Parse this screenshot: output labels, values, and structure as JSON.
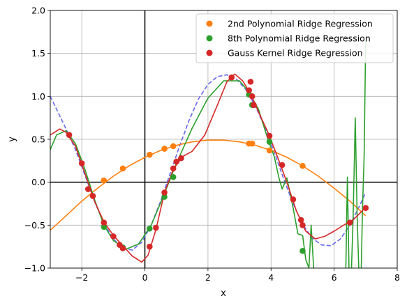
{
  "chart_data": {
    "type": "scatter",
    "title": "",
    "xlabel": "x",
    "ylabel": "y",
    "xlim": [
      -3,
      8
    ],
    "ylim": [
      -1,
      2
    ],
    "x_ticks": [
      -2,
      0,
      2,
      4,
      6,
      8
    ],
    "y_ticks": [
      -1.0,
      -0.5,
      0.0,
      0.5,
      1.0,
      1.5,
      2.0
    ],
    "x_tick_labels": [
      "−2",
      "0",
      "2",
      "4",
      "6",
      "8"
    ],
    "y_tick_labels": [
      "−1.0",
      "−0.5",
      "0.0",
      "0.5",
      "1.0",
      "1.5",
      "2.0"
    ],
    "grid": true,
    "legend_position": "top-right",
    "colors": {
      "orange": "#ff7f0e",
      "green": "#2ca02c",
      "red": "#d62728",
      "true_fn": "#6666ee",
      "axis_line": "#000000",
      "grid": "#b0b0b0"
    },
    "series": [
      {
        "name": "2nd Polynomial Ridge Regression",
        "color": "#ff7f0e",
        "points": [
          {
            "x": -1.3,
            "y": 0.02
          },
          {
            "x": -0.7,
            "y": 0.16
          },
          {
            "x": 0.15,
            "y": 0.32
          },
          {
            "x": 0.62,
            "y": 0.39
          },
          {
            "x": 0.9,
            "y": 0.42
          },
          {
            "x": 3.3,
            "y": 0.45
          },
          {
            "x": 3.4,
            "y": 0.45
          },
          {
            "x": 3.95,
            "y": 0.37
          },
          {
            "x": 5.0,
            "y": 0.19
          }
        ],
        "fit_line": [
          {
            "x": -3.0,
            "y": -0.56
          },
          {
            "x": -2.5,
            "y": -0.39
          },
          {
            "x": -2.0,
            "y": -0.22
          },
          {
            "x": -1.5,
            "y": -0.07
          },
          {
            "x": -1.0,
            "y": 0.07
          },
          {
            "x": -0.5,
            "y": 0.19
          },
          {
            "x": 0.0,
            "y": 0.29
          },
          {
            "x": 0.5,
            "y": 0.37
          },
          {
            "x": 1.0,
            "y": 0.43
          },
          {
            "x": 1.5,
            "y": 0.47
          },
          {
            "x": 2.0,
            "y": 0.49
          },
          {
            "x": 2.5,
            "y": 0.49
          },
          {
            "x": 3.0,
            "y": 0.47
          },
          {
            "x": 3.5,
            "y": 0.43
          },
          {
            "x": 4.0,
            "y": 0.37
          },
          {
            "x": 4.5,
            "y": 0.29
          },
          {
            "x": 5.0,
            "y": 0.19
          },
          {
            "x": 5.5,
            "y": 0.07
          },
          {
            "x": 6.0,
            "y": -0.07
          },
          {
            "x": 6.5,
            "y": -0.22
          },
          {
            "x": 7.0,
            "y": -0.39
          }
        ]
      },
      {
        "name": "8th Polynomial Ridge Regression",
        "color": "#2ca02c",
        "points": [
          {
            "x": -1.3,
            "y": -0.52
          },
          {
            "x": -0.7,
            "y": -0.76
          },
          {
            "x": 0.15,
            "y": -0.54
          },
          {
            "x": 0.62,
            "y": -0.17
          },
          {
            "x": 0.9,
            "y": 0.06
          },
          {
            "x": 3.3,
            "y": 1.02
          },
          {
            "x": 3.4,
            "y": 0.9
          },
          {
            "x": 3.95,
            "y": 0.47
          },
          {
            "x": 5.0,
            "y": -0.8
          }
        ],
        "fit_line": [
          {
            "x": -3.0,
            "y": 0.38
          },
          {
            "x": -2.8,
            "y": 0.55
          },
          {
            "x": -2.5,
            "y": 0.6
          },
          {
            "x": -2.2,
            "y": 0.45
          },
          {
            "x": -1.9,
            "y": 0.15
          },
          {
            "x": -1.6,
            "y": -0.2
          },
          {
            "x": -1.3,
            "y": -0.5
          },
          {
            "x": -1.0,
            "y": -0.68
          },
          {
            "x": -0.6,
            "y": -0.78
          },
          {
            "x": -0.2,
            "y": -0.72
          },
          {
            "x": 0.2,
            "y": -0.5
          },
          {
            "x": 0.6,
            "y": -0.15
          },
          {
            "x": 1.0,
            "y": 0.22
          },
          {
            "x": 1.5,
            "y": 0.63
          },
          {
            "x": 2.0,
            "y": 0.98
          },
          {
            "x": 2.5,
            "y": 1.18
          },
          {
            "x": 3.0,
            "y": 1.18
          },
          {
            "x": 3.3,
            "y": 1.05
          },
          {
            "x": 3.6,
            "y": 0.85
          },
          {
            "x": 3.9,
            "y": 0.5
          },
          {
            "x": 4.1,
            "y": 0.3
          },
          {
            "x": 4.25,
            "y": 0.05
          },
          {
            "x": 4.35,
            "y": -0.08
          },
          {
            "x": 4.5,
            "y": 0.05
          },
          {
            "x": 4.7,
            "y": -0.3
          },
          {
            "x": 4.85,
            "y": -0.6
          },
          {
            "x": 5.0,
            "y": -0.62
          },
          {
            "x": 5.1,
            "y": -0.9
          },
          {
            "x": 5.2,
            "y": -1.0
          },
          {
            "x": 5.27,
            "y": -0.5
          },
          {
            "x": 5.35,
            "y": -1.0
          }
        ],
        "fit_line_2": [
          {
            "x": 6.37,
            "y": -1.0
          },
          {
            "x": 6.42,
            "y": 0.06
          },
          {
            "x": 6.47,
            "y": -1.0
          }
        ],
        "fit_line_3": [
          {
            "x": 6.55,
            "y": -1.0
          },
          {
            "x": 6.6,
            "y": -0.45
          },
          {
            "x": 6.67,
            "y": 0.75
          },
          {
            "x": 6.73,
            "y": -0.4
          },
          {
            "x": 6.78,
            "y": -1.0
          }
        ],
        "fit_line_4": [
          {
            "x": 6.86,
            "y": -1.0
          },
          {
            "x": 6.9,
            "y": -0.3
          },
          {
            "x": 6.95,
            "y": 0.3
          },
          {
            "x": 7.0,
            "y": 1.65
          }
        ]
      },
      {
        "name": "Gauss Kernel Ridge Regression",
        "color": "#d62728",
        "points": [
          {
            "x": -2.4,
            "y": 0.55
          },
          {
            "x": -2.0,
            "y": 0.22
          },
          {
            "x": -1.8,
            "y": -0.08
          },
          {
            "x": -1.65,
            "y": -0.16
          },
          {
            "x": -1.3,
            "y": -0.47
          },
          {
            "x": -1.0,
            "y": -0.63
          },
          {
            "x": -0.8,
            "y": -0.73
          },
          {
            "x": -0.7,
            "y": -0.77
          },
          {
            "x": 0.15,
            "y": -0.75
          },
          {
            "x": 0.35,
            "y": -0.53
          },
          {
            "x": 0.62,
            "y": -0.12
          },
          {
            "x": 0.9,
            "y": 0.16
          },
          {
            "x": 1.0,
            "y": 0.24
          },
          {
            "x": 1.15,
            "y": 0.28
          },
          {
            "x": 2.75,
            "y": 1.22
          },
          {
            "x": 3.3,
            "y": 1.07
          },
          {
            "x": 3.35,
            "y": 1.17
          },
          {
            "x": 3.4,
            "y": 1.0
          },
          {
            "x": 3.45,
            "y": 0.9
          },
          {
            "x": 3.95,
            "y": 0.54
          },
          {
            "x": 4.35,
            "y": 0.2
          },
          {
            "x": 4.7,
            "y": -0.2
          },
          {
            "x": 4.95,
            "y": -0.44
          },
          {
            "x": 5.0,
            "y": -0.5
          },
          {
            "x": 6.5,
            "y": -0.47
          },
          {
            "x": 7.0,
            "y": -0.3
          }
        ],
        "fit_line": [
          {
            "x": -3.0,
            "y": 0.55
          },
          {
            "x": -2.7,
            "y": 0.62
          },
          {
            "x": -2.5,
            "y": 0.58
          },
          {
            "x": -2.2,
            "y": 0.42
          },
          {
            "x": -1.9,
            "y": 0.1
          },
          {
            "x": -1.6,
            "y": -0.22
          },
          {
            "x": -1.3,
            "y": -0.46
          },
          {
            "x": -1.0,
            "y": -0.62
          },
          {
            "x": -0.7,
            "y": -0.74
          },
          {
            "x": -0.4,
            "y": -0.86
          },
          {
            "x": -0.1,
            "y": -0.93
          },
          {
            "x": 0.1,
            "y": -0.85
          },
          {
            "x": 0.35,
            "y": -0.55
          },
          {
            "x": 0.62,
            "y": -0.12
          },
          {
            "x": 0.9,
            "y": 0.15
          },
          {
            "x": 1.2,
            "y": 0.3
          },
          {
            "x": 1.5,
            "y": 0.36
          },
          {
            "x": 1.9,
            "y": 0.55
          },
          {
            "x": 2.3,
            "y": 0.9
          },
          {
            "x": 2.6,
            "y": 1.17
          },
          {
            "x": 2.85,
            "y": 1.26
          },
          {
            "x": 3.1,
            "y": 1.18
          },
          {
            "x": 3.35,
            "y": 1.03
          },
          {
            "x": 3.6,
            "y": 0.82
          },
          {
            "x": 3.9,
            "y": 0.58
          },
          {
            "x": 4.2,
            "y": 0.3
          },
          {
            "x": 4.5,
            "y": 0.0
          },
          {
            "x": 4.8,
            "y": -0.33
          },
          {
            "x": 5.1,
            "y": -0.57
          },
          {
            "x": 5.4,
            "y": -0.66
          },
          {
            "x": 5.7,
            "y": -0.63
          },
          {
            "x": 6.0,
            "y": -0.57
          },
          {
            "x": 6.3,
            "y": -0.5
          },
          {
            "x": 6.6,
            "y": -0.44
          },
          {
            "x": 6.9,
            "y": -0.33
          },
          {
            "x": 7.0,
            "y": -0.29
          }
        ]
      }
    ],
    "true_function_dashed": {
      "color": "#6666ee",
      "points": [
        {
          "x": -3.0,
          "y": 1.0
        },
        {
          "x": -2.8,
          "y": 0.85
        },
        {
          "x": -2.5,
          "y": 0.62
        },
        {
          "x": -2.2,
          "y": 0.38
        },
        {
          "x": -1.9,
          "y": 0.08
        },
        {
          "x": -1.6,
          "y": -0.22
        },
        {
          "x": -1.3,
          "y": -0.48
        },
        {
          "x": -1.0,
          "y": -0.66
        },
        {
          "x": -0.7,
          "y": -0.77
        },
        {
          "x": -0.4,
          "y": -0.79
        },
        {
          "x": -0.1,
          "y": -0.7
        },
        {
          "x": 0.2,
          "y": -0.5
        },
        {
          "x": 0.5,
          "y": -0.22
        },
        {
          "x": 0.8,
          "y": 0.1
        },
        {
          "x": 1.1,
          "y": 0.42
        },
        {
          "x": 1.4,
          "y": 0.72
        },
        {
          "x": 1.7,
          "y": 0.97
        },
        {
          "x": 2.0,
          "y": 1.14
        },
        {
          "x": 2.3,
          "y": 1.23
        },
        {
          "x": 2.6,
          "y": 1.25
        },
        {
          "x": 2.9,
          "y": 1.2
        },
        {
          "x": 3.2,
          "y": 1.08
        },
        {
          "x": 3.5,
          "y": 0.89
        },
        {
          "x": 3.8,
          "y": 0.64
        },
        {
          "x": 4.1,
          "y": 0.35
        },
        {
          "x": 4.4,
          "y": 0.04
        },
        {
          "x": 4.7,
          "y": -0.25
        },
        {
          "x": 5.0,
          "y": -0.49
        },
        {
          "x": 5.3,
          "y": -0.65
        },
        {
          "x": 5.6,
          "y": -0.73
        },
        {
          "x": 5.9,
          "y": -0.74
        },
        {
          "x": 6.2,
          "y": -0.66
        },
        {
          "x": 6.5,
          "y": -0.5
        },
        {
          "x": 6.8,
          "y": -0.28
        },
        {
          "x": 7.0,
          "y": -0.12
        }
      ]
    }
  }
}
